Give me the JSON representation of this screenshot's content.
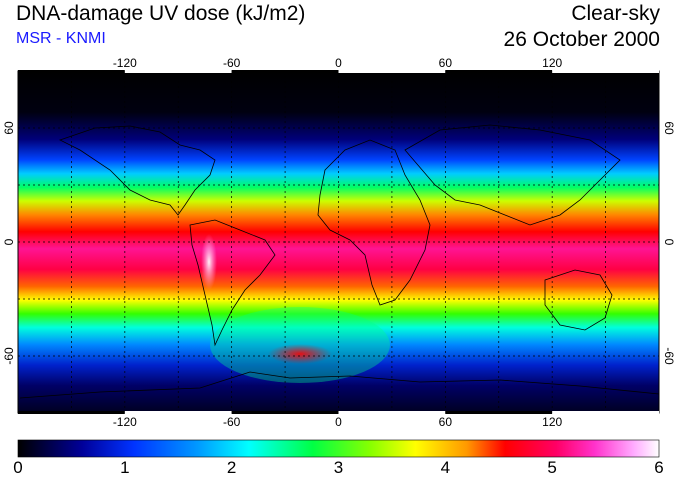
{
  "header": {
    "title": "DNA-damage UV dose (kJ/m2)",
    "source": "MSR - KNMI",
    "condition": "Clear-sky",
    "date": "26 October 2000"
  },
  "map": {
    "projection": "equirectangular",
    "lon_range": [
      -180,
      180
    ],
    "lat_range": [
      -90,
      90
    ],
    "lon_ticks": [
      -120,
      -60,
      0,
      60,
      120
    ],
    "lat_ticks": [
      60,
      0,
      -60
    ],
    "grid": "dotted, every 30 degrees",
    "field_description": "zonal UV dose bands, peak near equator / southern tropics"
  },
  "colorbar": {
    "ticks": [
      "0",
      "1",
      "2",
      "3",
      "4",
      "5",
      "6"
    ],
    "colors": [
      "#000000",
      "#0000aa",
      "#0066ff",
      "#00ffff",
      "#00ff00",
      "#ffff00",
      "#ff0000",
      "#ff1493",
      "#ffffff"
    ]
  }
}
